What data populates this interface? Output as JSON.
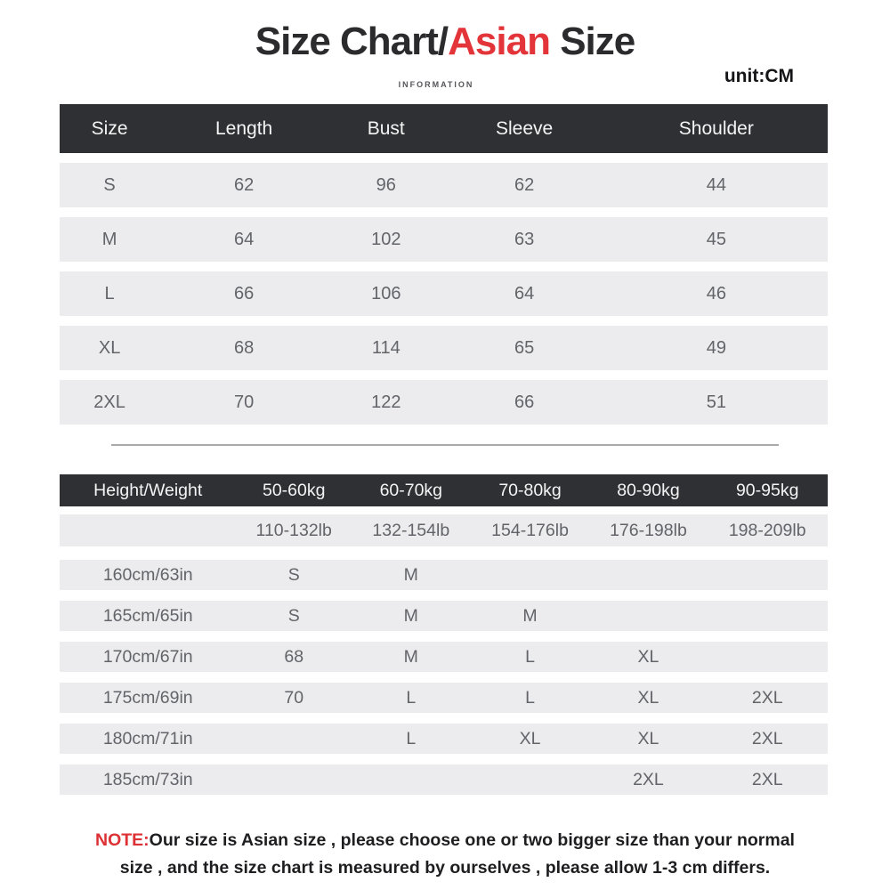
{
  "title": {
    "part1": "Size Chart/",
    "highlight": "Asian",
    "part2": " Size",
    "subtitle": "INFORMATION",
    "unit": "unit:CM"
  },
  "size_table": {
    "headers": [
      "Size",
      "Length",
      "Bust",
      "Sleeve",
      "Shoulder"
    ],
    "rows": [
      [
        "S",
        "62",
        "96",
        "62",
        "44"
      ],
      [
        "M",
        "64",
        "102",
        "63",
        "45"
      ],
      [
        "L",
        "66",
        "106",
        "64",
        "46"
      ],
      [
        "XL",
        "68",
        "114",
        "65",
        "49"
      ],
      [
        "2XL",
        "70",
        "122",
        "66",
        "51"
      ]
    ]
  },
  "fit_table": {
    "headers": [
      "Height/Weight",
      "50-60kg",
      "60-70kg",
      "70-80kg",
      "80-90kg",
      "90-95kg"
    ],
    "lb_row": [
      "",
      "110-132lb",
      "132-154lb",
      "154-176lb",
      "176-198lb",
      "198-209lb"
    ],
    "rows": [
      [
        "160cm/63in",
        "S",
        "M",
        "",
        "",
        ""
      ],
      [
        "165cm/65in",
        "S",
        "M",
        "M",
        "",
        ""
      ],
      [
        "170cm/67in",
        "68",
        "M",
        "L",
        "XL",
        ""
      ],
      [
        "175cm/69in",
        "70",
        "L",
        "L",
        "XL",
        "2XL"
      ],
      [
        "180cm/71in",
        "",
        "L",
        "XL",
        "XL",
        "2XL"
      ],
      [
        "185cm/73in",
        "",
        "",
        "",
        "2XL",
        "2XL"
      ]
    ]
  },
  "note": {
    "label": "NOTE:",
    "line1": "Our size is Asian size , please choose one or two bigger size than your normal",
    "line2": "size , and the size chart is measured by ourselves , please allow 1-3 cm differs."
  },
  "colors": {
    "header_bg": "#2f3034",
    "row_bg": "#ececee",
    "accent_red": "#e23439",
    "cell_text": "#626469"
  },
  "chart_data": [
    {
      "type": "table",
      "title": "Size Chart/Asian Size (unit:CM)",
      "columns": [
        "Size",
        "Length",
        "Bust",
        "Sleeve",
        "Shoulder"
      ],
      "rows": [
        [
          "S",
          62,
          96,
          62,
          44
        ],
        [
          "M",
          64,
          102,
          63,
          45
        ],
        [
          "L",
          66,
          106,
          64,
          46
        ],
        [
          "XL",
          68,
          114,
          65,
          49
        ],
        [
          "2XL",
          70,
          122,
          66,
          51
        ]
      ]
    },
    {
      "type": "table",
      "title": "Height/Weight size recommendation",
      "columns": [
        "Height/Weight",
        "50-60kg (110-132lb)",
        "60-70kg (132-154lb)",
        "70-80kg (154-176lb)",
        "80-90kg (176-198lb)",
        "90-95kg (198-209lb)"
      ],
      "rows": [
        [
          "160cm/63in",
          "S",
          "M",
          "",
          "",
          ""
        ],
        [
          "165cm/65in",
          "S",
          "M",
          "M",
          "",
          ""
        ],
        [
          "170cm/67in",
          "68",
          "M",
          "L",
          "XL",
          ""
        ],
        [
          "175cm/69in",
          "70",
          "L",
          "L",
          "XL",
          "2XL"
        ],
        [
          "180cm/71in",
          "",
          "L",
          "XL",
          "XL",
          "2XL"
        ],
        [
          "185cm/73in",
          "",
          "",
          "",
          "2XL",
          "2XL"
        ]
      ]
    }
  ]
}
